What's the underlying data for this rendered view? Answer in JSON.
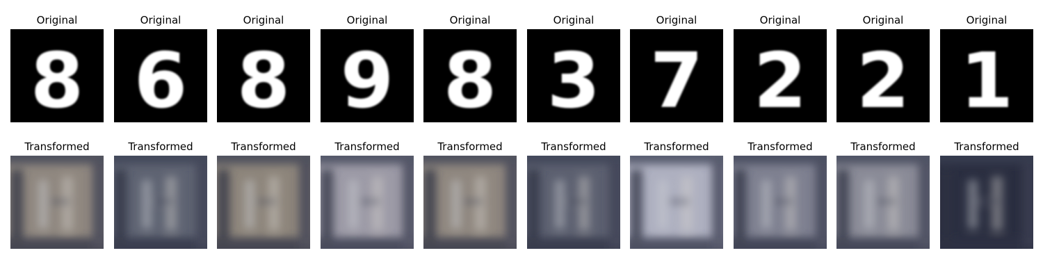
{
  "rows": [
    {
      "row_label": "Original",
      "items": [
        {
          "title": "Original",
          "digit": "8",
          "style": "mnist"
        },
        {
          "title": "Original",
          "digit": "6",
          "style": "mnist"
        },
        {
          "title": "Original",
          "digit": "8",
          "style": "mnist"
        },
        {
          "title": "Original",
          "digit": "9",
          "style": "mnist"
        },
        {
          "title": "Original",
          "digit": "8",
          "style": "mnist"
        },
        {
          "title": "Original",
          "digit": "3",
          "style": "mnist"
        },
        {
          "title": "Original",
          "digit": "7",
          "style": "mnist"
        },
        {
          "title": "Original",
          "digit": "2",
          "style": "mnist"
        },
        {
          "title": "Original",
          "digit": "2",
          "style": "mnist"
        },
        {
          "title": "Original",
          "digit": "1",
          "style": "mnist"
        }
      ]
    },
    {
      "row_label": "Transformed",
      "items": [
        {
          "title": "Transformed",
          "style": "svhn",
          "bg": "#8f877f"
        },
        {
          "title": "Transformed",
          "style": "svhn",
          "bg": "#5e6372"
        },
        {
          "title": "Transformed",
          "style": "svhn",
          "bg": "#8d857b"
        },
        {
          "title": "Transformed",
          "style": "svhn",
          "bg": "#9c9aa6"
        },
        {
          "title": "Transformed",
          "style": "svhn",
          "bg": "#8f877f"
        },
        {
          "title": "Transformed",
          "style": "svhn",
          "bg": "#5c6070"
        },
        {
          "title": "Transformed",
          "style": "svhn",
          "bg": "#aeb0c0"
        },
        {
          "title": "Transformed",
          "style": "svhn",
          "bg": "#7e8090"
        },
        {
          "title": "Transformed",
          "style": "svhn",
          "bg": "#8a8b97"
        },
        {
          "title": "Transformed",
          "style": "svhn",
          "bg": "#2a2e40"
        }
      ]
    }
  ],
  "colors": {
    "mnist_bg": "#000000",
    "mnist_fg": "#ffffff"
  }
}
